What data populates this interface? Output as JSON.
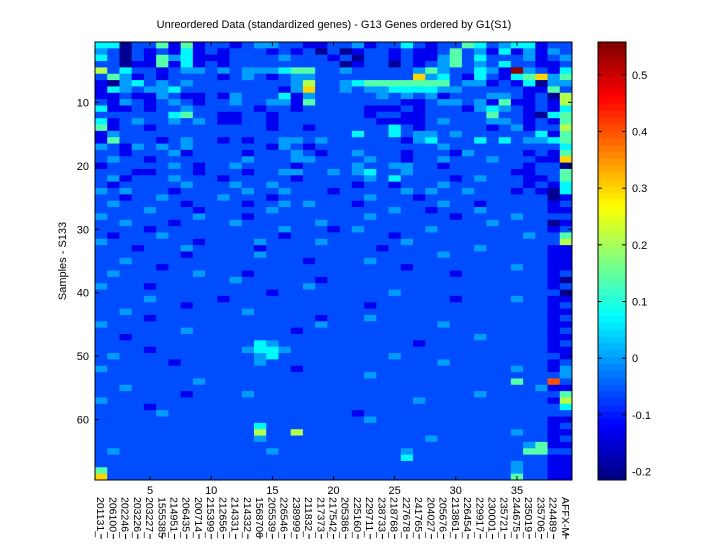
{
  "chart_data": {
    "type": "heatmap",
    "title": "Unreordered Data (standardized genes) - G13 Genes ordered by G1(S1)",
    "xlabel": "",
    "ylabel": "Samples - S133",
    "x_tick_values": [
      5,
      10,
      15,
      20,
      25,
      30,
      35
    ],
    "y_tick_values": [
      10,
      20,
      30,
      40,
      50,
      60
    ],
    "n_rows": 69,
    "n_cols": 39,
    "column_labels": [
      "201131_",
      "206100_",
      "202246_",
      "203226_",
      "203227_",
      "1555385",
      "214951_",
      "206435_",
      "200714_",
      "215399_",
      "212656_",
      "214331_",
      "214332_",
      "1568706",
      "205539_",
      "226546_",
      "238999_",
      "211832_",
      "217373_",
      "217542_",
      "205386_",
      "225160_",
      "229711_",
      "238733_",
      "218768_",
      "227678_",
      "241765_",
      "204027_",
      "205676_",
      "213861_",
      "226454_",
      "229917_",
      "230001_",
      "235721_",
      "244675_",
      "235019_",
      "235706_",
      "224489_",
      "AFFX-M"
    ],
    "colorbar": {
      "colormap": "jet",
      "range": [
        -0.215,
        0.558
      ],
      "tick_values": [
        -0.2,
        -0.1,
        0,
        0.1,
        0.2,
        0.3,
        0.4,
        0.5
      ],
      "tick_labels": [
        "-0.2",
        "-0.1",
        "0",
        "0.1",
        "0.2",
        "0.3",
        "0.4",
        "0.5"
      ]
    },
    "level_values": [
      -0.2,
      -0.13,
      -0.06,
      0.0,
      0.07,
      0.14,
      0.21,
      0.3,
      0.4,
      0.55
    ],
    "matrix_levels": [
      "440225151221233221122312242122542344122",
      "320212141212221212020122121125231413132",
      "420215341112222322212022121135242223123",
      "220115141212222222220122021235232422112",
      "624221233232333455223222223532243193214",
      "253121222212321233222222227342142145735",
      "103423232222222236223455555552331214033",
      "143233422222222137223233444433222221152",
      "112113211213222413222223232312223321206",
      "213212321223223315222222211233231511216",
      "411212232222212212222211121222134321214",
      "222222452211221222222212211222225221045",
      "412322323211221222222221111232223321215",
      "512212222222221221222222421222221231226",
      "132222222222222222222422423323222222415",
      "152221232212122332322222213422242423345",
      "321323232222221321222222222232222222224",
      "221222312222122232122322212221322221215",
      "232212222222322233222232212232223222117",
      "122222321223222212222322332212222221220",
      "222112221222122332232342232222222211225",
      "231222322212222212222232422221232221125",
      "212222232223223222222122122232222221214",
      "323222122222322322212222232322322212104",
      "221223222232221222222232221222222222201",
      "232222212222122323222122222232212222212",
      "222232221222223222222222322122232222211",
      "322222223222122222222232222221222232222",
      "223222122223222222322222222222223222201",
      "222212222222222322212322222322222222212",
      "212223222222222122222222122222222223225",
      "322222221222232222322222232222222222226",
      "222122232222212222222221222222232222211",
      "222222212222232222222222222232222222211",
      "223222222222222221222232222222222222211",
      "222221222222222222222222212222222232211",
      "232222223222122222222222222221222222212",
      "222222222223222222122222222222222222210",
      "322212222222222223222222222222222222212",
      "222222222222221222222222322222222222220",
      "222232222212222222222222222221222232211",
      "222222212222222222222212222222222222212",
      "223222222222322222222222222222222222211",
      "222212222222222222122232222222222222212",
      "322222222222222222322222222232222222211",
      "222222232222222212222222222222222222212",
      "221222222222222222222222222222232222211",
      "222222222222243222222222221222222222212",
      "222212222222344322222222222222222222211",
      "232222222222234222222222322222222222221",
      "222222122222232222222222222232222222212",
      "322222222222222212222222222222222232213",
      "222222222222222222222232222222222222223",
      "222222223222222222222222222222222252282",
      "223222222222222222222222222222222222311",
      "222222212222322222222222222222232222225",
      "322222222222222222222222223222222222216",
      "222212222222222222222222222222222222224",
      "222223222222222222222122222222222222222",
      "222222222222222222222232222222222222211",
      "222222222222242222222222222222222222212",
      "222222222222262262222222222222222232211",
      "222222222222232222222222222322222222212",
      "222222222222222222222222222222222223511",
      "232222222222223222222222232222222225522",
      "222222222222222222222222242222222222211",
      "222222222222222222222222222222222232211",
      "522222222222222222222222222222222232211",
      "722222222222222222222222222222222252211"
    ]
  }
}
